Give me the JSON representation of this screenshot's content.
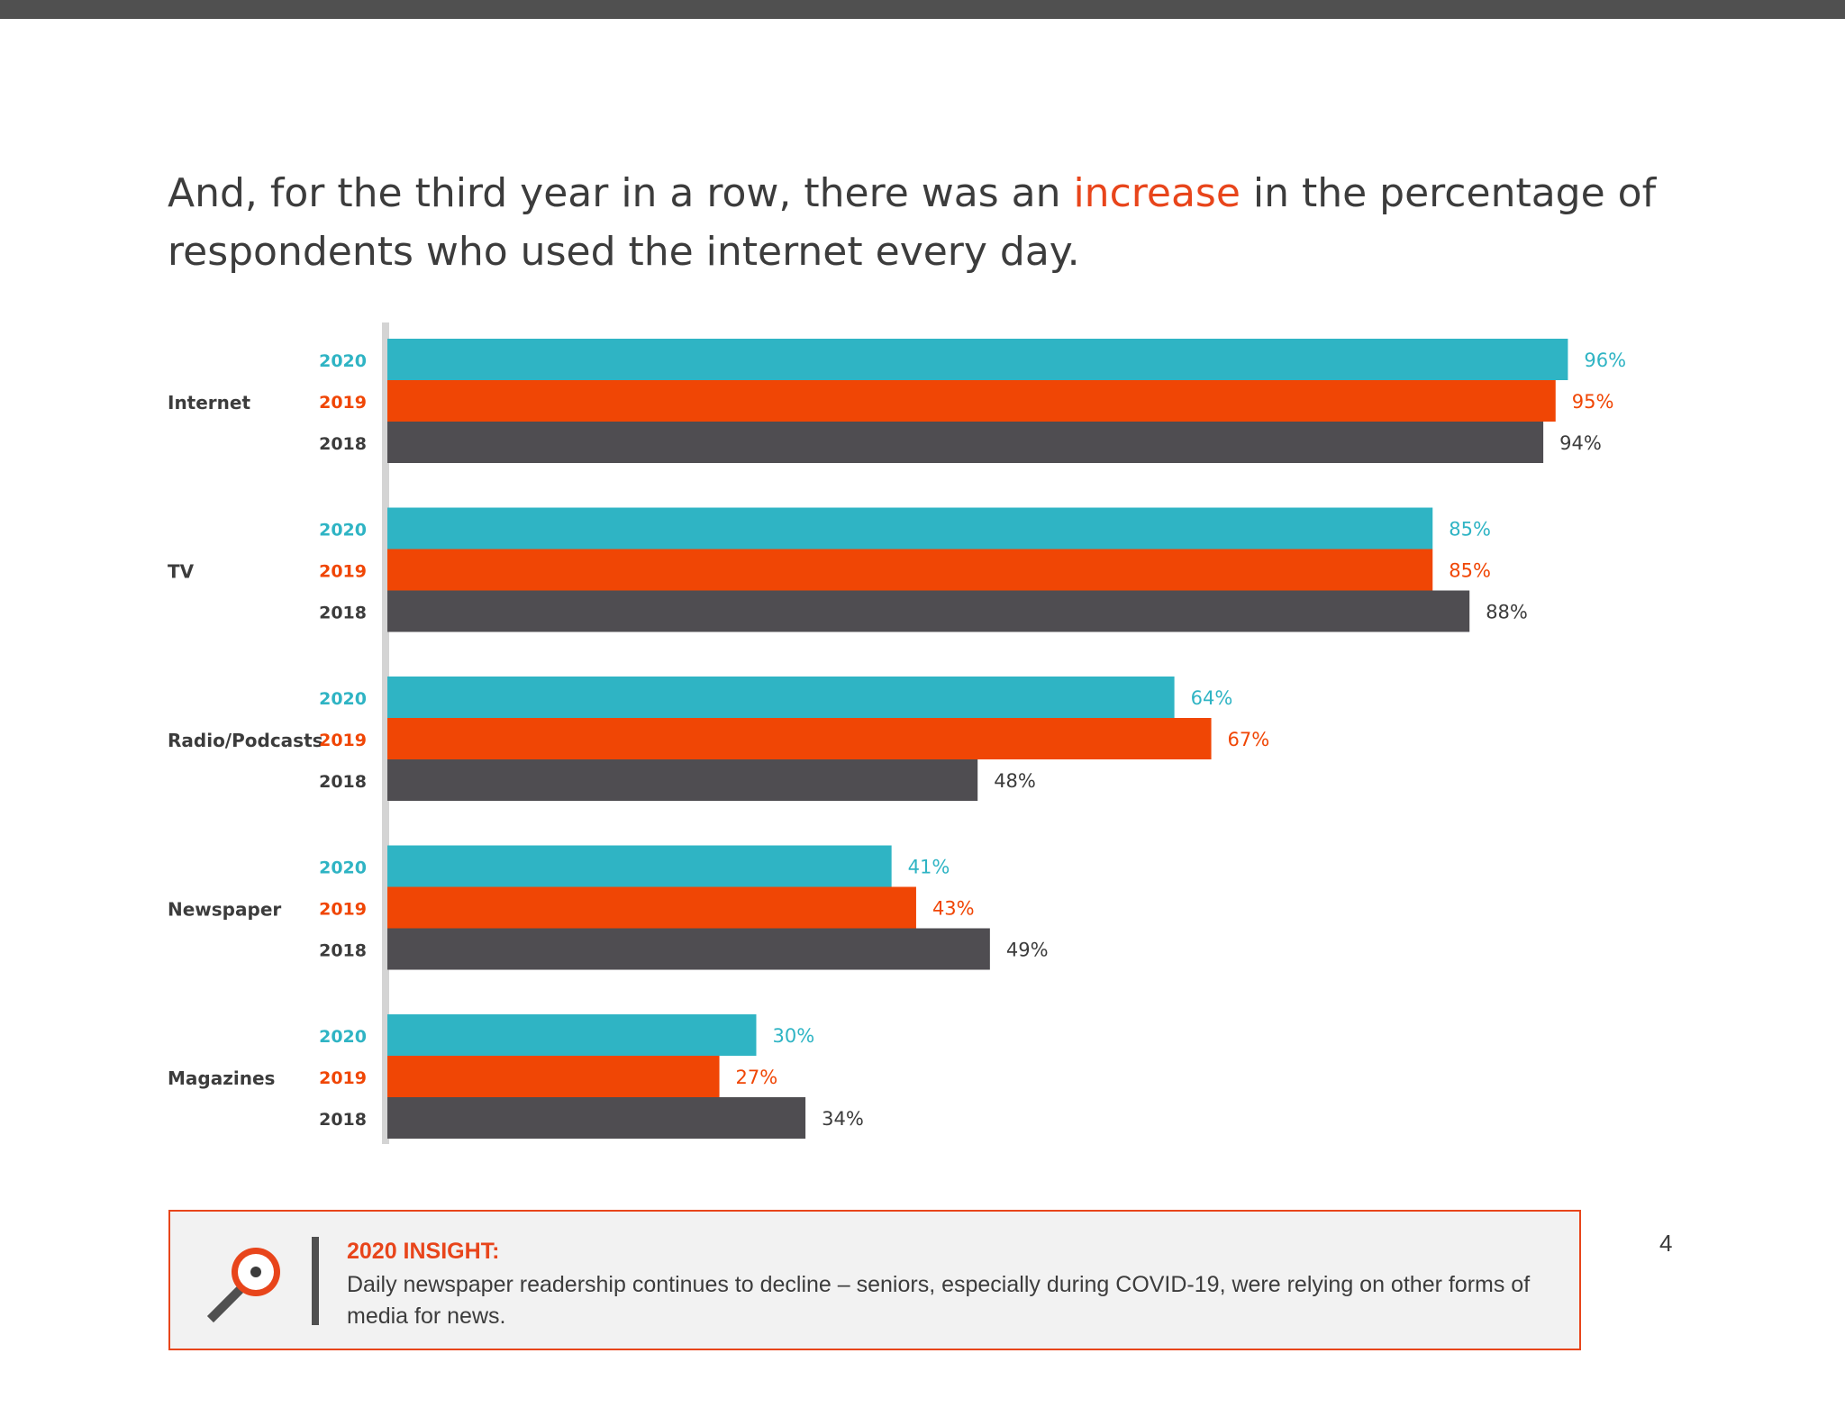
{
  "headline": {
    "part1": "And, for the third year in a row, there was an ",
    "highlight": "increase",
    "part2": " in the percentage of respondents who used the internet every day."
  },
  "colors": {
    "2020": "#2fb4c4",
    "2019": "#f04605",
    "2018": "#4f4d51",
    "axis": "#d4d4d4",
    "accent": "#e8451b"
  },
  "chart_data": {
    "type": "bar",
    "orientation": "horizontal",
    "categories": [
      "Internet",
      "TV",
      "Radio/Podcasts",
      "Newspaper",
      "Magazines"
    ],
    "series": [
      {
        "name": "2020",
        "values": [
          96,
          85,
          64,
          41,
          30
        ]
      },
      {
        "name": "2019",
        "values": [
          95,
          85,
          67,
          43,
          27
        ]
      },
      {
        "name": "2018",
        "values": [
          94,
          88,
          48,
          49,
          34
        ]
      }
    ],
    "value_suffix": "%",
    "xlim": [
      0,
      100
    ],
    "grid": false,
    "legend": "none"
  },
  "insight": {
    "title": "2020 INSIGHT:",
    "text": "Daily newspaper readership continues to decline – seniors, especially during COVID-19, were relying on other forms of media for news.",
    "icon": "magnifier-icon"
  },
  "page_number": "4"
}
